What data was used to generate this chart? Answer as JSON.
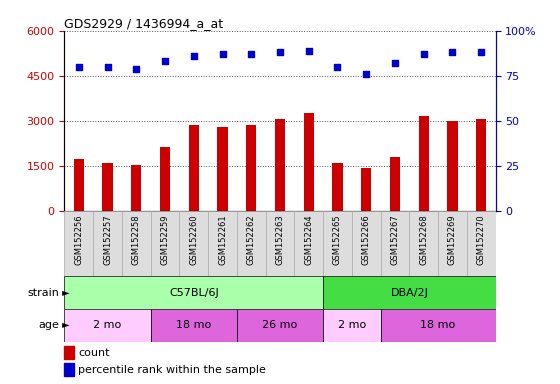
{
  "title": "GDS2929 / 1436994_a_at",
  "samples": [
    "GSM152256",
    "GSM152257",
    "GSM152258",
    "GSM152259",
    "GSM152260",
    "GSM152261",
    "GSM152262",
    "GSM152263",
    "GSM152264",
    "GSM152265",
    "GSM152266",
    "GSM152267",
    "GSM152268",
    "GSM152269",
    "GSM152270"
  ],
  "counts": [
    1750,
    1600,
    1550,
    2150,
    2850,
    2800,
    2850,
    3050,
    3250,
    1600,
    1450,
    1800,
    3150,
    3000,
    3050
  ],
  "percentile_ranks": [
    80,
    80,
    79,
    83,
    86,
    87,
    87,
    88,
    89,
    80,
    76,
    82,
    87,
    88,
    88
  ],
  "ylim_left": [
    0,
    6000
  ],
  "ylim_right": [
    0,
    100
  ],
  "yticks_left": [
    0,
    1500,
    3000,
    4500,
    6000
  ],
  "yticks_right": [
    0,
    25,
    50,
    75,
    100
  ],
  "bar_color": "#cc0000",
  "dot_color": "#0000cc",
  "strain_c57_color": "#aaffaa",
  "strain_dba_color": "#44dd44",
  "age_light_color": "#ffccff",
  "age_dark_color": "#dd66dd",
  "strain_c57_label": "C57BL/6J",
  "strain_dba_label": "DBA/2J",
  "strain_c57_count": 9,
  "strain_dba_count": 6,
  "age_groups": [
    {
      "label": "2 mo",
      "start": 0,
      "end": 3,
      "dark": false
    },
    {
      "label": "18 mo",
      "start": 3,
      "end": 6,
      "dark": true
    },
    {
      "label": "26 mo",
      "start": 6,
      "end": 9,
      "dark": true
    },
    {
      "label": "2 mo",
      "start": 9,
      "end": 11,
      "dark": false
    },
    {
      "label": "18 mo",
      "start": 11,
      "end": 15,
      "dark": true
    }
  ],
  "tick_color_left": "#cc0000",
  "tick_color_right": "#0000cc",
  "background_color": "#ffffff",
  "xticklabel_bg": "#dddddd",
  "grid_dotted_color": "#555555"
}
